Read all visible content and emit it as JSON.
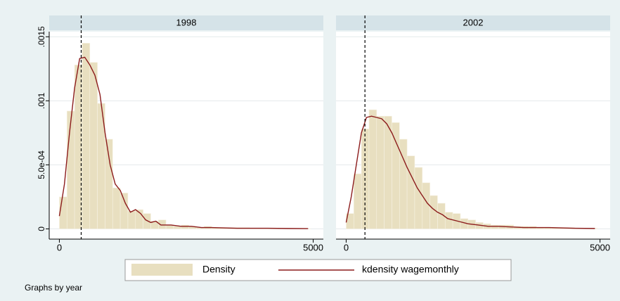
{
  "chart_data": {
    "type": "histogram",
    "note": "Graphs by year",
    "xlim": [
      -200,
      5200
    ],
    "xticks": [
      0,
      5000
    ],
    "ylim": [
      -8e-05,
      0.00154
    ],
    "yticks": [
      0,
      {
        "value": 0.0005,
        "label": "5.0e-04"
      },
      {
        "value": 0.001,
        "label": ".001"
      },
      {
        "value": 0.0015,
        "label": ".0015"
      }
    ],
    "grid": true,
    "legend": [
      {
        "name": "Density",
        "color": "#e8dfc0"
      },
      {
        "name": "kdensity wagemonthly",
        "color": "#8c1c1c"
      }
    ],
    "bins": [
      0,
      150,
      300,
      450,
      600,
      750,
      900,
      1050,
      1200,
      1350,
      1500,
      1650,
      1800,
      1950,
      2100,
      2250,
      2400,
      2550,
      2700,
      2850,
      3000,
      3150,
      3300,
      3450,
      3600,
      3750,
      3900,
      4050,
      4200,
      4350,
      4500,
      4650,
      4800,
      4950
    ],
    "panels": [
      {
        "title": "1998",
        "values": [
          0.00025,
          0.00092,
          0.00128,
          0.00145,
          0.0013,
          0.00098,
          0.0007,
          0.00032,
          0.00028,
          0.00014,
          0.00015,
          0.00012,
          6e-05,
          7e-05,
          3e-05,
          2e-05,
          3e-05,
          2e-05,
          1e-05,
          2e-05,
          1e-05,
          1e-05,
          1e-05,
          1e-05,
          1e-05,
          5e-06,
          5e-06,
          5e-06,
          5e-06,
          3e-06,
          3e-06,
          2e-06,
          2e-06
        ],
        "kdensity": {
          "x": [
            0,
            100,
            200,
            300,
            400,
            500,
            600,
            700,
            800,
            900,
            1000,
            1100,
            1200,
            1300,
            1400,
            1500,
            1600,
            1700,
            1800,
            1900,
            2000,
            2200,
            2400,
            2600,
            2800,
            3000,
            3500,
            4000,
            4500,
            4900
          ],
          "values": [
            0.0001,
            0.00035,
            0.00075,
            0.0011,
            0.00133,
            0.00134,
            0.00128,
            0.0012,
            0.00105,
            0.00075,
            0.0005,
            0.00035,
            0.0003,
            0.0002,
            0.00013,
            0.00015,
            0.00012,
            7e-05,
            5e-05,
            6e-05,
            3e-05,
            3e-05,
            2e-05,
            2e-05,
            1e-05,
            1e-05,
            5e-06,
            5e-06,
            3e-06,
            2e-06
          ]
        },
        "refline": 430
      },
      {
        "title": "2002",
        "values": [
          0.00012,
          0.00043,
          0.00078,
          0.00093,
          0.00088,
          0.00088,
          0.00083,
          0.0007,
          0.00057,
          0.00048,
          0.00036,
          0.00026,
          0.0002,
          0.00013,
          0.00012,
          8e-05,
          7e-05,
          5e-05,
          4e-05,
          3e-05,
          3e-05,
          3e-05,
          2e-05,
          2e-05,
          2e-05,
          1e-05,
          1e-05,
          1e-05,
          1e-05,
          1e-05,
          5e-06,
          5e-06,
          5e-06
        ],
        "kdensity": {
          "x": [
            0,
            100,
            200,
            300,
            400,
            500,
            600,
            700,
            800,
            900,
            1000,
            1100,
            1200,
            1300,
            1400,
            1500,
            1600,
            1700,
            1800,
            1900,
            2000,
            2200,
            2400,
            2600,
            2800,
            3000,
            3500,
            4000,
            4500,
            4900
          ],
          "values": [
            5e-05,
            0.00025,
            0.0005,
            0.00075,
            0.00087,
            0.00088,
            0.00087,
            0.00086,
            0.00082,
            0.00075,
            0.00066,
            0.00057,
            0.00048,
            0.0004,
            0.00032,
            0.00026,
            0.0002,
            0.00016,
            0.00013,
            0.00011,
            8e-05,
            6e-05,
            4e-05,
            3e-05,
            2e-05,
            2e-05,
            1e-05,
            1e-05,
            5e-06,
            3e-06
          ]
        },
        "refline": 370
      }
    ]
  }
}
